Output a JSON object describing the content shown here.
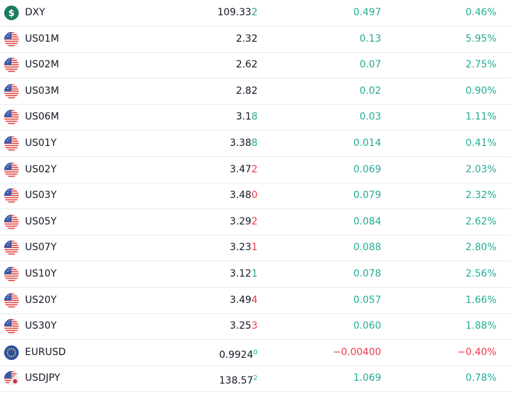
{
  "table": {
    "rows": [
      {
        "icon": "dollar",
        "symbol": "DXY",
        "price": "109.33",
        "price_tick": "2",
        "tick_dir": "up",
        "change": "0.497",
        "change_pct": "0.46%",
        "dir": "up"
      },
      {
        "icon": "us",
        "symbol": "US01M",
        "price": "2.32",
        "change": "0.13",
        "change_pct": "5.95%",
        "dir": "up"
      },
      {
        "icon": "us",
        "symbol": "US02M",
        "price": "2.62",
        "change": "0.07",
        "change_pct": "2.75%",
        "dir": "up"
      },
      {
        "icon": "us",
        "symbol": "US03M",
        "price": "2.82",
        "change": "0.02",
        "change_pct": "0.90%",
        "dir": "up"
      },
      {
        "icon": "us",
        "symbol": "US06M",
        "price": "3.1",
        "price_tick": "8",
        "tick_dir": "up",
        "change": "0.03",
        "change_pct": "1.11%",
        "dir": "up"
      },
      {
        "icon": "us",
        "symbol": "US01Y",
        "price": "3.38",
        "price_tick": "8",
        "tick_dir": "up",
        "change": "0.014",
        "change_pct": "0.41%",
        "dir": "up"
      },
      {
        "icon": "us",
        "symbol": "US02Y",
        "price": "3.47",
        "price_tick": "2",
        "tick_dir": "down",
        "change": "0.069",
        "change_pct": "2.03%",
        "dir": "up"
      },
      {
        "icon": "us",
        "symbol": "US03Y",
        "price": "3.48",
        "price_tick": "0",
        "tick_dir": "down",
        "change": "0.079",
        "change_pct": "2.32%",
        "dir": "up"
      },
      {
        "icon": "us",
        "symbol": "US05Y",
        "price": "3.29",
        "price_tick": "2",
        "tick_dir": "down",
        "change": "0.084",
        "change_pct": "2.62%",
        "dir": "up"
      },
      {
        "icon": "us",
        "symbol": "US07Y",
        "price": "3.23",
        "price_tick": "1",
        "tick_dir": "down",
        "change": "0.088",
        "change_pct": "2.80%",
        "dir": "up"
      },
      {
        "icon": "us",
        "symbol": "US10Y",
        "price": "3.12",
        "price_tick": "1",
        "tick_dir": "up",
        "change": "0.078",
        "change_pct": "2.56%",
        "dir": "up"
      },
      {
        "icon": "us",
        "symbol": "US20Y",
        "price": "3.49",
        "price_tick": "4",
        "tick_dir": "down",
        "change": "0.057",
        "change_pct": "1.66%",
        "dir": "up"
      },
      {
        "icon": "us",
        "symbol": "US30Y",
        "price": "3.25",
        "price_tick": "3",
        "tick_dir": "down",
        "change": "0.060",
        "change_pct": "1.88%",
        "dir": "up"
      },
      {
        "icon": "eu",
        "symbol": "EURUSD",
        "price": "0.9924",
        "price_tick": "0",
        "tick_dir": "up",
        "tick_superscript": true,
        "change": "−0.00400",
        "change_pct": "−0.40%",
        "dir": "down"
      },
      {
        "icon": "jp",
        "symbol": "USDJPY",
        "price": "138.57",
        "price_tick": "2",
        "tick_dir": "up",
        "tick_superscript": true,
        "change": "1.069",
        "change_pct": "0.78%",
        "dir": "up"
      }
    ]
  }
}
